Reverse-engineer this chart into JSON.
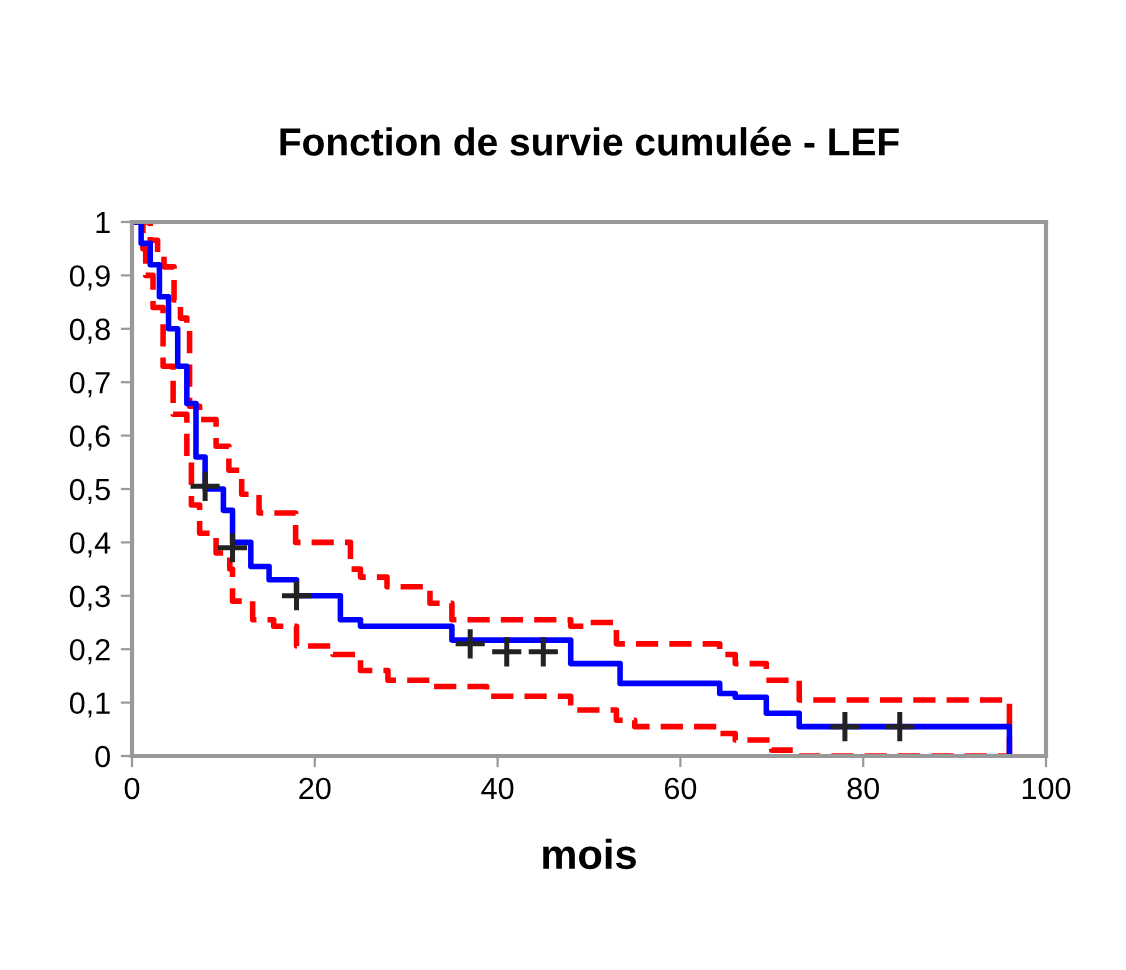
{
  "chart_data": {
    "type": "step",
    "title": "Fonction de survie cumulée - LEF",
    "xlabel": "mois",
    "xlim": [
      0,
      100
    ],
    "xticks": [
      0,
      20,
      40,
      60,
      80,
      100
    ],
    "ylim": [
      0,
      1
    ],
    "yticks": [
      0,
      {
        "value": 0.1,
        "label": "0,1"
      },
      {
        "value": 0.2,
        "label": "0,2"
      },
      {
        "value": 0.3,
        "label": "0,3"
      },
      {
        "value": 0.4,
        "label": "0,4"
      },
      {
        "value": 0.5,
        "label": "0,5"
      },
      {
        "value": 0.6,
        "label": "0,6"
      },
      {
        "value": 0.7,
        "label": "0,7"
      },
      {
        "value": 0.8,
        "label": "0,8"
      },
      {
        "value": 0.9,
        "label": "0,9"
      },
      1
    ],
    "grid": false,
    "legend": false,
    "series": [
      {
        "color": "#ff0000",
        "line_style": "dashed",
        "x": [
          0,
          2,
          2.8,
          3.5,
          4.6,
          5.3,
          6,
          6.3,
          7.4,
          9.2,
          10.6,
          12,
          13.9,
          17.9,
          23.9,
          25,
          27.9,
          32.6,
          35,
          48,
          50,
          53,
          64.3,
          66,
          69.4,
          73,
          96,
          96
        ],
        "values": [
          1,
          0.966,
          0.94,
          0.916,
          0.854,
          0.82,
          0.8,
          0.655,
          0.63,
          0.58,
          0.535,
          0.49,
          0.455,
          0.4,
          0.35,
          0.335,
          0.317,
          0.286,
          0.255,
          0.243,
          0.25,
          0.21,
          0.19,
          0.173,
          0.142,
          0.105,
          0.105,
          0
        ]
      },
      {
        "color": "#ff0000",
        "line_style": "dashed",
        "x": [
          0,
          1.2,
          1.5,
          2.3,
          3.4,
          4.5,
          6,
          6.5,
          7.4,
          9.2,
          10.7,
          11,
          13.2,
          15.5,
          18,
          22,
          25,
          28,
          32.6,
          38.8,
          48,
          53,
          55,
          64,
          66,
          70,
          73,
          96
        ],
        "values": [
          1,
          0.95,
          0.9,
          0.84,
          0.73,
          0.64,
          0.55,
          0.47,
          0.417,
          0.38,
          0.35,
          0.29,
          0.255,
          0.243,
          0.206,
          0.19,
          0.16,
          0.142,
          0.13,
          0.112,
          0.086,
          0.067,
          0.055,
          0.042,
          0.03,
          0.011,
          0,
          0
        ]
      },
      {
        "color": "#0000ff",
        "line_style": "solid",
        "x": [
          0,
          1,
          2,
          3,
          4,
          5,
          6,
          7,
          8,
          10,
          11,
          13,
          15,
          18,
          22.8,
          25,
          27.9,
          35,
          48,
          53.4,
          64.3,
          66,
          69.4,
          73,
          96,
          96
        ],
        "values": [
          1,
          0.96,
          0.92,
          0.86,
          0.8,
          0.73,
          0.66,
          0.56,
          0.5,
          0.46,
          0.4,
          0.355,
          0.33,
          0.3,
          0.255,
          0.243,
          0.243,
          0.217,
          0.173,
          0.136,
          0.117,
          0.11,
          0.08,
          0.055,
          0.055,
          0
        ]
      },
      {
        "type": "scatter",
        "color": "#222222",
        "marker": "cross",
        "x": [
          8,
          11,
          18,
          37,
          41,
          45,
          78,
          84
        ],
        "values": [
          0.505,
          0.39,
          0.3,
          0.21,
          0.195,
          0.195,
          0.055,
          0.055
        ]
      }
    ]
  }
}
